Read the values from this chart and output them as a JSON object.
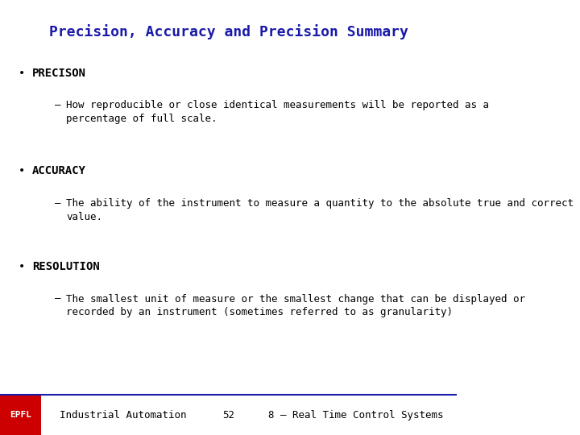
{
  "title": "Precision, Accuracy and Precision Summary",
  "title_color": "#1a1aaa",
  "title_fontsize": 13,
  "bg_color": "#ffffff",
  "bullet1_header": "PRECISON",
  "bullet1_text": "How reproducible or close identical measurements will be reported as a\npercentage of full scale.",
  "bullet2_header": "ACCURACY",
  "bullet2_text": "The ability of the instrument to measure a quantity to the absolute true and correct\nvalue.",
  "bullet3_header": "RESOLUTION",
  "bullet3_text": "The smallest unit of measure or the smallest change that can be displayed or\nrecorded by an instrument (sometimes referred to as granularity)",
  "footer_left": "Industrial Automation",
  "footer_center": "52",
  "footer_right": "8 – Real Time Control Systems",
  "footer_line_color": "#1a1aaa",
  "footer_bg_color": "#cc0000",
  "footer_text_color": "#000000",
  "header_font": "monospace",
  "body_font": "monospace",
  "header_fontsize": 10,
  "body_fontsize": 9,
  "footer_fontsize": 9
}
